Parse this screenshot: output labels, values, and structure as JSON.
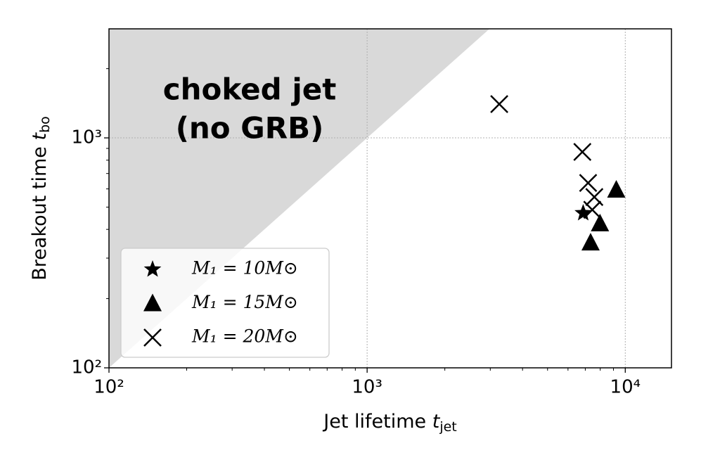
{
  "chart_data": {
    "type": "scatter",
    "xlabel": {
      "text": "Jet lifetime ",
      "var": "t",
      "sub": "jet"
    },
    "ylabel": {
      "text": "Breakout time ",
      "var": "t",
      "sub": "bo"
    },
    "annotation": [
      "choked jet",
      "(no GRB)"
    ],
    "xscale": "log",
    "yscale": "log",
    "xlim": [
      100,
      15100
    ],
    "ylim": [
      100,
      2980
    ],
    "xticks": [
      {
        "value": 100,
        "label": "10²"
      },
      {
        "value": 1000,
        "label": "10³"
      },
      {
        "value": 10000,
        "label": "10⁴"
      }
    ],
    "yticks": [
      {
        "value": 100,
        "label": "10²"
      },
      {
        "value": 1000,
        "label": "10³"
      }
    ],
    "xminorticks": [
      200,
      300,
      400,
      500,
      600,
      700,
      800,
      900,
      2000,
      3000,
      4000,
      5000,
      6000,
      7000,
      8000,
      9000
    ],
    "yminorticks": [
      200,
      300,
      400,
      500,
      600,
      700,
      800,
      900,
      2000
    ],
    "grid": true,
    "shade_above_diagonal_color": "#d9d9d9",
    "legend": "lower left",
    "series": [
      {
        "name": "M₁ = 10M⊙",
        "marker": "star",
        "color": "#000000",
        "x": [
          6870
        ],
        "values": [
          471
        ]
      },
      {
        "name": "M₁ = 15M⊙",
        "marker": "triangle",
        "color": "#000000",
        "x": [
          9230,
          7980,
          7340
        ],
        "values": [
          594,
          424,
          350
        ]
      },
      {
        "name": "M₁ = 20M⊙",
        "marker": "cross",
        "color": "#000000",
        "x": [
          3250,
          6820,
          7180,
          7590,
          7450
        ],
        "values": [
          1403,
          869,
          637,
          553,
          487
        ]
      }
    ]
  }
}
